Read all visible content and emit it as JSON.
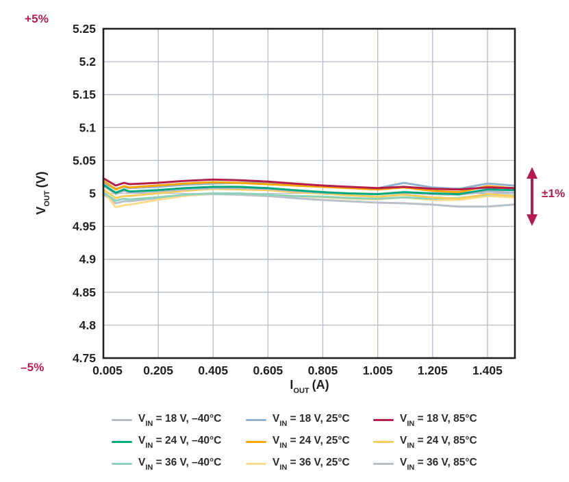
{
  "annotations": {
    "plus5": "+5%",
    "minus5": "–5%",
    "pm1": "±1%",
    "accent_color": "#b11e4e"
  },
  "axes": {
    "y_label": {
      "main": "V",
      "sub": "OUT",
      "unit": "(V)"
    },
    "x_label": {
      "main": "I",
      "sub": "OUT",
      "unit": "(A)"
    }
  },
  "style": {
    "frame_color": "#231f20",
    "grid_color": "#b7bccb",
    "tick_text_color": "#231f20"
  },
  "chart_data": {
    "type": "line",
    "title": "",
    "xlabel": "I_OUT (A)",
    "ylabel": "V_OUT (V)",
    "xlim": [
      0.005,
      1.505
    ],
    "ylim": [
      4.75,
      5.25
    ],
    "grid": true,
    "legend_position": "bottom",
    "x_ticks": [
      0.005,
      0.205,
      0.405,
      0.605,
      0.805,
      1.005,
      1.205,
      1.405
    ],
    "x_tick_labels": [
      "0.005",
      "0.205",
      "0.405",
      "0.605",
      "0.805",
      "1.005",
      "1.205",
      "1.405"
    ],
    "y_ticks": [
      5.25,
      5.2,
      5.15,
      5.1,
      5.05,
      5.0,
      4.95,
      4.9,
      4.85,
      4.8,
      4.75
    ],
    "y_tick_labels": [
      "5.25",
      "5.2",
      "5.15",
      "5.1",
      "5.05",
      "5",
      "4.95",
      "4.9",
      "4.85",
      "4.8",
      "4.75"
    ],
    "x": [
      0.005,
      0.05,
      0.08,
      0.1,
      0.2,
      0.3,
      0.405,
      0.5,
      0.605,
      0.7,
      0.805,
      0.9,
      1.005,
      1.1,
      1.205,
      1.3,
      1.405,
      1.5
    ],
    "series": [
      {
        "name": "V_IN = 18 V, –40°C",
        "vin": "18 V",
        "temp": "–40°C",
        "color": "#b6b9c9",
        "values": [
          5.012,
          4.999,
          5.004,
          5.001,
          5.003,
          5.006,
          5.008,
          5.008,
          5.007,
          5.004,
          5.001,
          5.0,
          4.999,
          5.001,
          4.999,
          4.998,
          5.003,
          5.001
        ]
      },
      {
        "name": "V_IN = 18 V, 25°C",
        "vin": "18 V",
        "temp": "25°C",
        "color": "#90b3cd",
        "values": [
          5.016,
          5.007,
          5.01,
          5.008,
          5.01,
          5.013,
          5.015,
          5.016,
          5.017,
          5.014,
          5.011,
          5.009,
          5.008,
          5.016,
          5.009,
          5.007,
          5.015,
          5.012
        ]
      },
      {
        "name": "V_IN = 18 V, 85°C",
        "vin": "18 V",
        "temp": "85°C",
        "color": "#b41e4b",
        "values": [
          5.023,
          5.012,
          5.016,
          5.014,
          5.016,
          5.019,
          5.021,
          5.02,
          5.018,
          5.015,
          5.012,
          5.01,
          5.008,
          5.01,
          5.007,
          5.006,
          5.009,
          5.008
        ]
      },
      {
        "name": "V_IN = 24 V, –40°C",
        "vin": "24 V",
        "temp": "–40°C",
        "color": "#00a87e",
        "values": [
          5.013,
          5.001,
          5.006,
          5.003,
          5.005,
          5.008,
          5.01,
          5.01,
          5.008,
          5.005,
          5.002,
          5.0,
          4.999,
          5.002,
          5.0,
          4.999,
          5.006,
          5.005
        ]
      },
      {
        "name": "V_IN = 24 V, 25°C",
        "vin": "24 V",
        "temp": "25°C",
        "color": "#f7a600",
        "values": [
          5.019,
          5.006,
          5.011,
          5.009,
          5.012,
          5.015,
          5.017,
          5.016,
          5.014,
          5.012,
          5.01,
          5.008,
          5.006,
          5.009,
          5.004,
          5.002,
          5.011,
          5.008
        ]
      },
      {
        "name": "V_IN = 24 V, 85°C",
        "vin": "24 V",
        "temp": "85°C",
        "color": "#f8cd60",
        "values": [
          5.006,
          4.993,
          4.996,
          4.996,
          5.0,
          5.004,
          5.007,
          5.006,
          5.005,
          5.002,
          5.0,
          4.997,
          4.995,
          4.998,
          4.994,
          4.992,
          4.999,
          4.996
        ]
      },
      {
        "name": "V_IN = 36 V, –40°C",
        "vin": "36 V",
        "temp": "–40°C",
        "color": "#8fd2bc",
        "values": [
          5.001,
          4.989,
          4.992,
          4.991,
          4.994,
          4.998,
          5.0,
          5.0,
          4.998,
          4.996,
          4.995,
          4.993,
          4.992,
          4.994,
          4.992,
          4.993,
          4.998,
          4.997
        ]
      },
      {
        "name": "V_IN = 36 V, 25°C",
        "vin": "36 V",
        "temp": "25°C",
        "color": "#fbdd8e",
        "values": [
          5.003,
          4.979,
          4.982,
          4.983,
          4.99,
          4.996,
          5.0,
          5.0,
          4.998,
          4.996,
          4.994,
          4.992,
          4.991,
          4.994,
          4.99,
          4.99,
          4.996,
          4.994
        ]
      },
      {
        "name": "V_IN = 36 V, 85°C",
        "vin": "36 V",
        "temp": "85°C",
        "color": "#bac0c9",
        "values": [
          4.999,
          4.985,
          4.988,
          4.988,
          4.993,
          4.997,
          4.999,
          4.998,
          4.996,
          4.993,
          4.99,
          4.988,
          4.986,
          4.985,
          4.983,
          4.98,
          4.98,
          4.983
        ]
      }
    ],
    "draw_order": [
      8,
      7,
      6,
      5,
      0,
      3,
      1,
      4,
      2
    ]
  }
}
